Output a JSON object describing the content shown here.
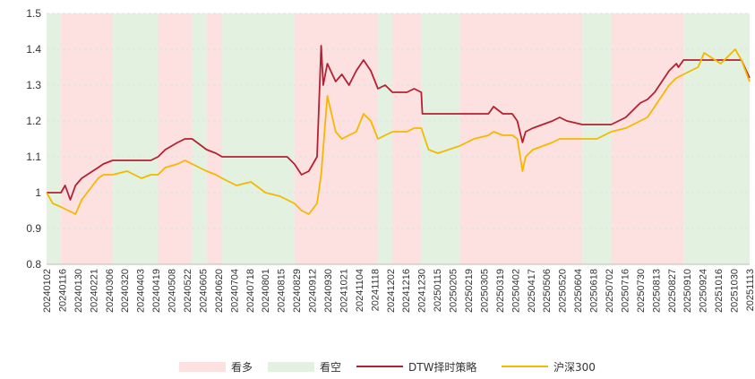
{
  "chart_data": {
    "type": "line",
    "title": "",
    "xlabel": "",
    "ylabel": "",
    "ylim": [
      0.8,
      1.5
    ],
    "yticks": [
      "0.8",
      "0.9",
      "1",
      "1.1",
      "1.2",
      "1.3",
      "1.4",
      "1.5"
    ],
    "grid": true,
    "legend_position": "bottom",
    "x_tick_labels": [
      "20240102",
      "20240116",
      "20240130",
      "20240221",
      "20240306",
      "20240320",
      "20240403",
      "20240419",
      "20240508",
      "20240522",
      "20240605",
      "20240620",
      "20240704",
      "20240718",
      "20240801",
      "20240815",
      "20240829",
      "20240912",
      "20240930",
      "20241021",
      "20241104",
      "20241118",
      "20241202",
      "20241216",
      "20241230",
      "20250115",
      "20250205",
      "20250219",
      "20250305",
      "20250319",
      "20250402",
      "20250417",
      "20250506",
      "20250520",
      "20250604",
      "20250618",
      "20250702",
      "20250716",
      "20250730",
      "20250813",
      "20250827",
      "20250910",
      "20250924",
      "20251016",
      "20251030",
      "20251113"
    ],
    "regimes": {
      "bull_label": "看多",
      "bear_label": "看空",
      "bull_color": "#fde0e0",
      "bear_color": "#e3f1e0",
      "segments": [
        {
          "start": "20240102",
          "end": "20240116",
          "regime": "bear"
        },
        {
          "start": "20240116",
          "end": "20240306",
          "regime": "bull"
        },
        {
          "start": "20240306",
          "end": "20240419",
          "regime": "bear"
        },
        {
          "start": "20240419",
          "end": "20240522",
          "regime": "bull"
        },
        {
          "start": "20240522",
          "end": "20240605",
          "regime": "bear"
        },
        {
          "start": "20240605",
          "end": "20240620",
          "regime": "bull"
        },
        {
          "start": "20240620",
          "end": "20240829",
          "regime": "bear"
        },
        {
          "start": "20240829",
          "end": "20241118",
          "regime": "bull"
        },
        {
          "start": "20241118",
          "end": "20241202",
          "regime": "bear"
        },
        {
          "start": "20241202",
          "end": "20241230",
          "regime": "bull"
        },
        {
          "start": "20241230",
          "end": "20250205",
          "regime": "bear"
        },
        {
          "start": "20250205",
          "end": "20250604",
          "regime": "bull"
        },
        {
          "start": "20250604",
          "end": "20250702",
          "regime": "bear"
        },
        {
          "start": "20250702",
          "end": "20250910",
          "regime": "bull"
        },
        {
          "start": "20250910",
          "end": "20251113",
          "regime": "bear"
        }
      ]
    },
    "series": [
      {
        "name": "DTW择时策略",
        "color": "#b22232",
        "points": [
          [
            "20240102",
            1.0
          ],
          [
            "20240116",
            1.0
          ],
          [
            "20240120",
            1.02
          ],
          [
            "20240125",
            0.98
          ],
          [
            "20240130",
            1.02
          ],
          [
            "20240205",
            1.04
          ],
          [
            "20240221",
            1.07
          ],
          [
            "20240226",
            1.08
          ],
          [
            "20240306",
            1.09
          ],
          [
            "20240320",
            1.09
          ],
          [
            "20240403",
            1.09
          ],
          [
            "20240412",
            1.09
          ],
          [
            "20240419",
            1.1
          ],
          [
            "20240426",
            1.12
          ],
          [
            "20240508",
            1.14
          ],
          [
            "20240515",
            1.15
          ],
          [
            "20240522",
            1.15
          ],
          [
            "20240605",
            1.12
          ],
          [
            "20240614",
            1.11
          ],
          [
            "20240620",
            1.1
          ],
          [
            "20240704",
            1.1
          ],
          [
            "20240718",
            1.1
          ],
          [
            "20240801",
            1.1
          ],
          [
            "20240815",
            1.1
          ],
          [
            "20240822",
            1.1
          ],
          [
            "20240829",
            1.08
          ],
          [
            "20240905",
            1.05
          ],
          [
            "20240912",
            1.06
          ],
          [
            "20240920",
            1.1
          ],
          [
            "20240924",
            1.41
          ],
          [
            "20240926",
            1.3
          ],
          [
            "20240930",
            1.36
          ],
          [
            "20241008",
            1.31
          ],
          [
            "20241014",
            1.33
          ],
          [
            "20241021",
            1.3
          ],
          [
            "20241028",
            1.34
          ],
          [
            "20241104",
            1.37
          ],
          [
            "20241111",
            1.34
          ],
          [
            "20241118",
            1.29
          ],
          [
            "20241125",
            1.3
          ],
          [
            "20241202",
            1.28
          ],
          [
            "20241216",
            1.28
          ],
          [
            "20241223",
            1.29
          ],
          [
            "20241230",
            1.28
          ],
          [
            "20241231",
            1.22
          ],
          [
            "20250115",
            1.22
          ],
          [
            "20250205",
            1.22
          ],
          [
            "20250219",
            1.22
          ],
          [
            "20250305",
            1.22
          ],
          [
            "20250310",
            1.24
          ],
          [
            "20250319",
            1.22
          ],
          [
            "20250328",
            1.22
          ],
          [
            "20250402",
            1.2
          ],
          [
            "20250407",
            1.14
          ],
          [
            "20250410",
            1.17
          ],
          [
            "20250417",
            1.18
          ],
          [
            "20250506",
            1.2
          ],
          [
            "20250513",
            1.21
          ],
          [
            "20250520",
            1.2
          ],
          [
            "20250604",
            1.19
          ],
          [
            "20250618",
            1.19
          ],
          [
            "20250702",
            1.19
          ],
          [
            "20250716",
            1.21
          ],
          [
            "20250730",
            1.25
          ],
          [
            "20250806",
            1.26
          ],
          [
            "20250813",
            1.28
          ],
          [
            "20250827",
            1.34
          ],
          [
            "20250903",
            1.36
          ],
          [
            "20250905",
            1.35
          ],
          [
            "20250910",
            1.37
          ],
          [
            "20250924",
            1.37
          ],
          [
            "20251016",
            1.37
          ],
          [
            "20251030",
            1.37
          ],
          [
            "20251105",
            1.37
          ],
          [
            "20251113",
            1.32
          ]
        ]
      },
      {
        "name": "沪深300",
        "color": "#f5b800",
        "points": [
          [
            "20240102",
            1.0
          ],
          [
            "20240108",
            0.97
          ],
          [
            "20240116",
            0.96
          ],
          [
            "20240123",
            0.95
          ],
          [
            "20240130",
            0.94
          ],
          [
            "20240205",
            0.98
          ],
          [
            "20240221",
            1.04
          ],
          [
            "20240226",
            1.05
          ],
          [
            "20240306",
            1.05
          ],
          [
            "20240320",
            1.06
          ],
          [
            "20240403",
            1.04
          ],
          [
            "20240412",
            1.05
          ],
          [
            "20240419",
            1.05
          ],
          [
            "20240426",
            1.07
          ],
          [
            "20240508",
            1.08
          ],
          [
            "20240515",
            1.09
          ],
          [
            "20240522",
            1.08
          ],
          [
            "20240605",
            1.06
          ],
          [
            "20240614",
            1.05
          ],
          [
            "20240620",
            1.04
          ],
          [
            "20240704",
            1.02
          ],
          [
            "20240718",
            1.03
          ],
          [
            "20240801",
            1.0
          ],
          [
            "20240815",
            0.99
          ],
          [
            "20240829",
            0.97
          ],
          [
            "20240905",
            0.95
          ],
          [
            "20240912",
            0.94
          ],
          [
            "20240920",
            0.97
          ],
          [
            "20240924",
            1.05
          ],
          [
            "20240930",
            1.27
          ],
          [
            "20241008",
            1.17
          ],
          [
            "20241014",
            1.15
          ],
          [
            "20241021",
            1.16
          ],
          [
            "20241028",
            1.17
          ],
          [
            "20241104",
            1.22
          ],
          [
            "20241111",
            1.2
          ],
          [
            "20241118",
            1.15
          ],
          [
            "20241125",
            1.16
          ],
          [
            "20241202",
            1.17
          ],
          [
            "20241216",
            1.17
          ],
          [
            "20241223",
            1.18
          ],
          [
            "20241230",
            1.18
          ],
          [
            "20250106",
            1.12
          ],
          [
            "20250115",
            1.11
          ],
          [
            "20250205",
            1.13
          ],
          [
            "20250219",
            1.15
          ],
          [
            "20250305",
            1.16
          ],
          [
            "20250310",
            1.17
          ],
          [
            "20250319",
            1.16
          ],
          [
            "20250328",
            1.16
          ],
          [
            "20250402",
            1.15
          ],
          [
            "20250407",
            1.06
          ],
          [
            "20250410",
            1.1
          ],
          [
            "20250417",
            1.12
          ],
          [
            "20250506",
            1.14
          ],
          [
            "20250513",
            1.15
          ],
          [
            "20250520",
            1.15
          ],
          [
            "20250604",
            1.15
          ],
          [
            "20250618",
            1.15
          ],
          [
            "20250702",
            1.17
          ],
          [
            "20250716",
            1.18
          ],
          [
            "20250730",
            1.2
          ],
          [
            "20250806",
            1.21
          ],
          [
            "20250813",
            1.24
          ],
          [
            "20250827",
            1.3
          ],
          [
            "20250903",
            1.32
          ],
          [
            "20250910",
            1.33
          ],
          [
            "20250924",
            1.35
          ],
          [
            "20250930",
            1.39
          ],
          [
            "20251016",
            1.36
          ],
          [
            "20251030",
            1.4
          ],
          [
            "20251105",
            1.37
          ],
          [
            "20251113",
            1.31
          ]
        ]
      }
    ]
  }
}
